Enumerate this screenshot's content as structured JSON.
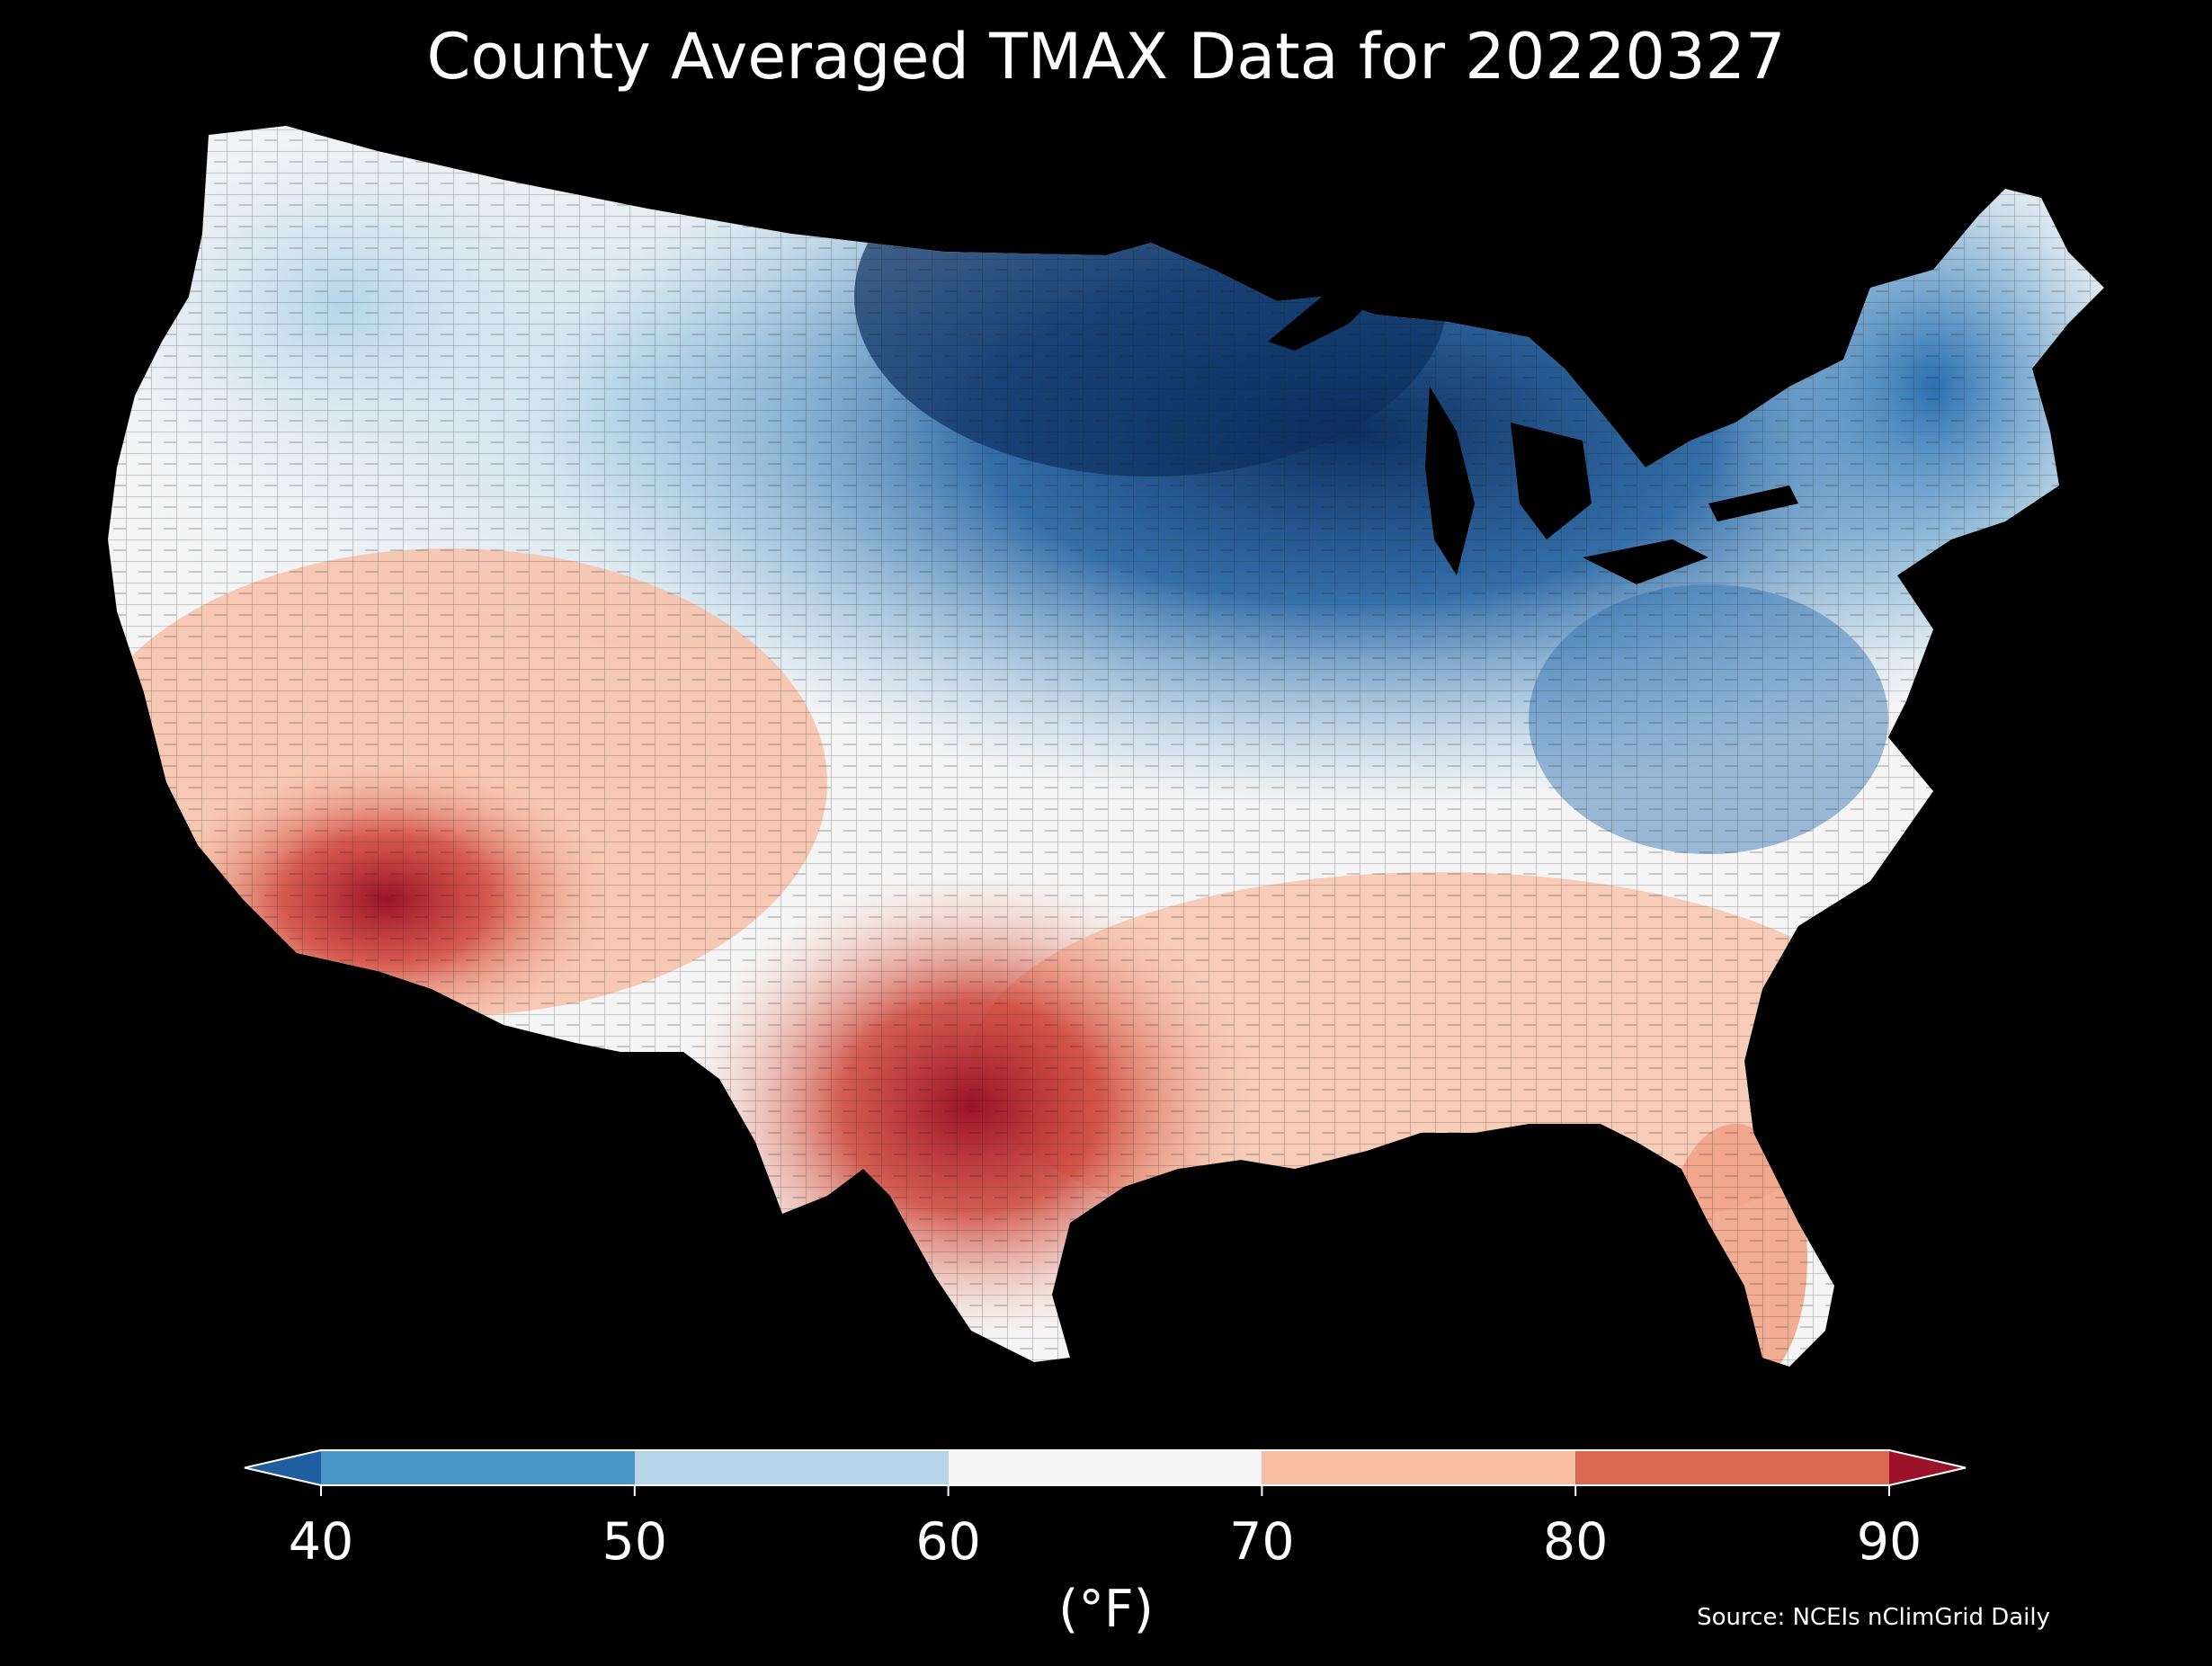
{
  "title": "County Averaged TMAX Data for 20220327",
  "colorbar": {
    "unit_label": "(°F)",
    "ticks": [
      "40",
      "50",
      "60",
      "70",
      "80",
      "90"
    ],
    "tick_values": [
      40,
      50,
      60,
      70,
      80,
      90
    ],
    "bins": [
      {
        "from": 40,
        "to": 50,
        "color": "#4a96c8"
      },
      {
        "from": 50,
        "to": 60,
        "color": "#b5d6e8"
      },
      {
        "from": 60,
        "to": 70,
        "color": "#f5f5f5"
      },
      {
        "from": 70,
        "to": 80,
        "color": "#f7bea4"
      },
      {
        "from": 80,
        "to": 90,
        "color": "#dc6752"
      }
    ],
    "under_color": "#1f5fa0",
    "over_color": "#9c1228",
    "extend": "both"
  },
  "source": "Source: NCEIs nClimGrid Daily",
  "colors": {
    "background": "#000000",
    "county_border": "#1a1a1a"
  }
}
